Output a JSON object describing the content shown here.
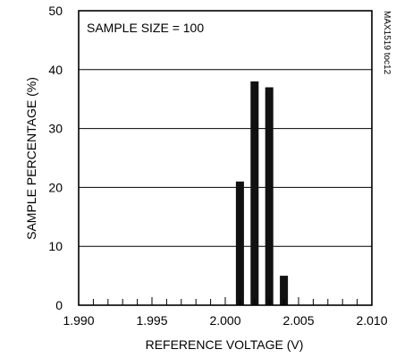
{
  "chart_data": {
    "type": "bar",
    "annotation": "SAMPLE SIZE = 100",
    "side_label": "MAX1519 toc12",
    "xlabel": "REFERENCE VOLTAGE (V)",
    "ylabel": "SAMPLE PERCENTAGE (%)",
    "xlim": [
      1.99,
      2.01
    ],
    "ylim": [
      0,
      50
    ],
    "x_ticks": [
      "1.990",
      "1.995",
      "2.000",
      "2.005",
      "2.010"
    ],
    "y_ticks": [
      "0",
      "10",
      "20",
      "30",
      "40",
      "50"
    ],
    "grid": "horizontal",
    "x": [
      2.001,
      2.002,
      2.003,
      2.004
    ],
    "values": [
      21,
      38,
      37,
      5
    ]
  }
}
